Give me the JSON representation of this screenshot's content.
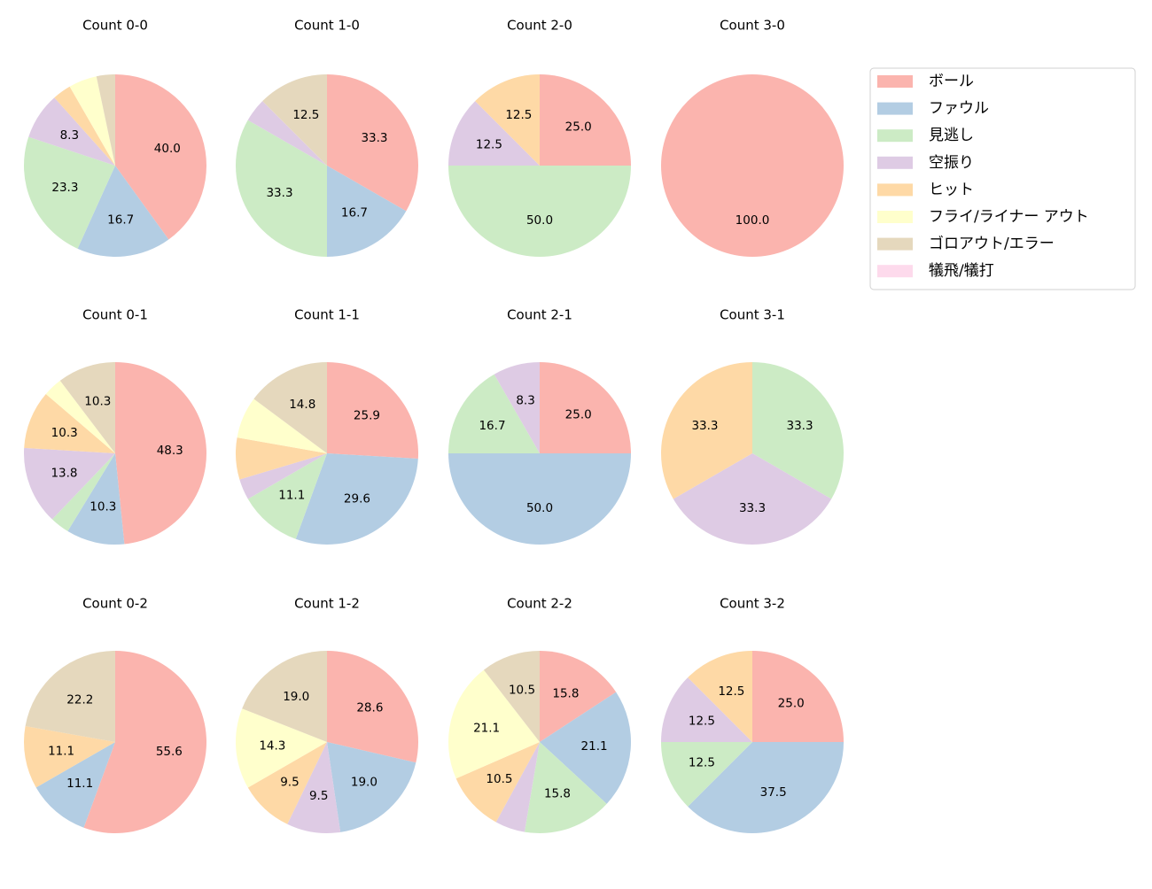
{
  "chart_data": {
    "type": "pie",
    "start_angle": 90,
    "direction": "clockwise",
    "value_format": "percent, 1 decimal",
    "categories": [
      "ボール",
      "ファウル",
      "見逃し",
      "空振り",
      "ヒット",
      "フライ/ライナー アウト",
      "ゴロアウト/エラー",
      "犠飛/犠打"
    ],
    "colors": [
      "#fbb4ae",
      "#b3cde3",
      "#ccebc5",
      "#decbe4",
      "#fed9a6",
      "#ffffcc",
      "#e5d8bd",
      "#fddaec"
    ],
    "legend_position": "top-right",
    "pies": [
      {
        "title": "Count 0-0",
        "values": [
          40.0,
          16.7,
          23.3,
          8.3,
          3.3,
          5.0,
          3.3,
          0
        ]
      },
      {
        "title": "Count 1-0",
        "values": [
          33.3,
          16.7,
          33.3,
          4.2,
          0,
          0,
          12.5,
          0
        ]
      },
      {
        "title": "Count 2-0",
        "values": [
          25.0,
          0,
          50.0,
          12.5,
          12.5,
          0,
          0,
          0
        ]
      },
      {
        "title": "Count 3-0",
        "values": [
          100.0,
          0,
          0,
          0,
          0,
          0,
          0,
          0
        ]
      },
      {
        "title": "Count 0-1",
        "values": [
          48.3,
          10.3,
          3.4,
          13.8,
          10.3,
          3.4,
          10.3,
          0
        ]
      },
      {
        "title": "Count 1-1",
        "values": [
          25.9,
          29.6,
          11.1,
          3.7,
          7.4,
          7.4,
          14.8,
          0
        ]
      },
      {
        "title": "Count 2-1",
        "values": [
          25.0,
          50.0,
          16.7,
          8.3,
          0,
          0,
          0,
          0
        ]
      },
      {
        "title": "Count 3-1",
        "values": [
          0,
          0,
          33.3,
          33.3,
          33.3,
          0,
          0,
          0
        ]
      },
      {
        "title": "Count 0-2",
        "values": [
          55.6,
          11.1,
          0,
          0,
          11.1,
          0,
          22.2,
          0
        ]
      },
      {
        "title": "Count 1-2",
        "values": [
          28.6,
          19.0,
          0,
          9.5,
          9.5,
          14.3,
          19.0,
          0
        ]
      },
      {
        "title": "Count 2-2",
        "values": [
          15.8,
          21.1,
          15.8,
          5.3,
          10.5,
          21.1,
          10.5,
          0
        ]
      },
      {
        "title": "Count 3-2",
        "values": [
          25.0,
          37.5,
          12.5,
          12.5,
          12.5,
          0,
          0,
          0
        ]
      }
    ]
  }
}
